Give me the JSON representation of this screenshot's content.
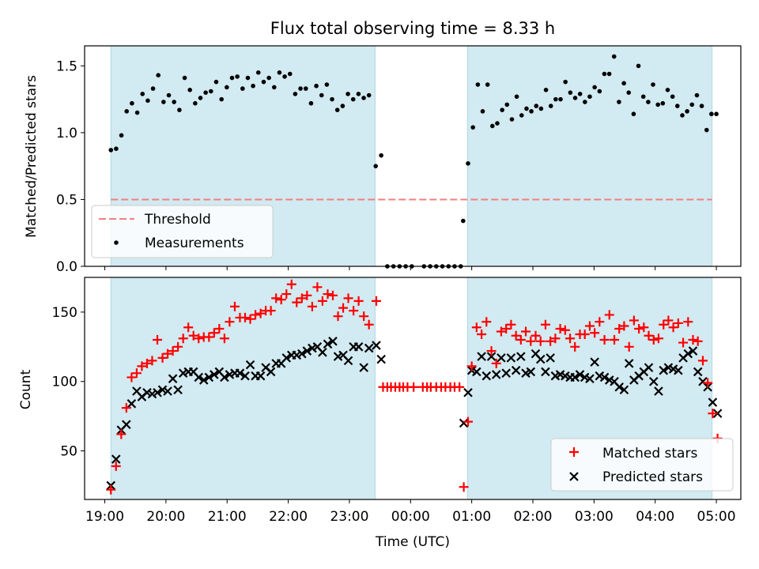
{
  "chart_data": {
    "title": "Flux total observing time = 8.33 h",
    "xlabel": "Time (UTC)",
    "x_unit": "hours since 19:00 UTC",
    "xlim": [
      -0.33,
      10.4
    ],
    "x_tick_positions": [
      0,
      1,
      2,
      3,
      4,
      5,
      6,
      7,
      8,
      9,
      10
    ],
    "x_tick_labels": [
      "19:00",
      "20:00",
      "21:00",
      "22:00",
      "23:00",
      "00:00",
      "01:00",
      "02:00",
      "03:00",
      "04:00",
      "05:00"
    ],
    "observing_windows": [
      [
        0.1,
        4.42
      ],
      [
        5.93,
        9.93
      ]
    ],
    "window_color": "#add8e6",
    "top": {
      "type": "scatter",
      "ylabel": "Matched/Predicted stars",
      "ylim": [
        0,
        1.65
      ],
      "y_ticks": [
        0,
        0.5,
        1.0,
        1.5
      ],
      "y_tick_labels": [
        "0.0",
        "0.5",
        "1.0",
        "1.5"
      ],
      "threshold": {
        "name": "Threshold",
        "value": 0.5,
        "color": "#f08080"
      },
      "series": {
        "name": "Measurements",
        "color": "#000000",
        "x": [],
        "y": []
      },
      "legend": {
        "position": "lower-left",
        "entries": [
          "Threshold",
          "Measurements"
        ]
      }
    },
    "bottom": {
      "type": "scatter",
      "ylabel": "Count",
      "ylim": [
        15,
        175
      ],
      "y_ticks": [
        50,
        100,
        150
      ],
      "y_tick_labels": [
        "50",
        "100",
        "150"
      ],
      "series": [
        {
          "name": "Matched stars",
          "marker": "plus",
          "color": "#ff0000",
          "x": [],
          "y": []
        },
        {
          "name": "Predicted stars",
          "marker": "cross",
          "color": "#000000",
          "x": [],
          "y": []
        }
      ],
      "legend": {
        "position": "lower-right",
        "entries": [
          "Matched stars",
          "Predicted stars"
        ]
      }
    }
  }
}
